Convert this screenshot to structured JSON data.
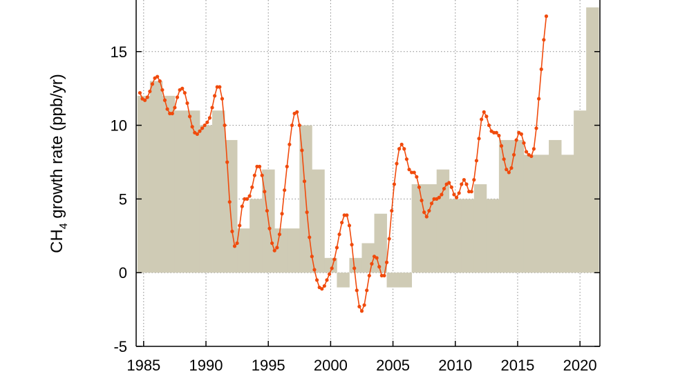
{
  "chart_data": {
    "type": "bar",
    "ylabel": {
      "prefix": "CH",
      "subscript": "4",
      "suffix": " growth rate (ppb/yr)"
    },
    "xlim": [
      1984.4,
      2021.6
    ],
    "ylim": [
      -5,
      18.5
    ],
    "x_ticks": [
      {
        "value": 1985,
        "label": "1985"
      },
      {
        "value": 1990,
        "label": "1990"
      },
      {
        "value": 1995,
        "label": "1995"
      },
      {
        "value": 2000,
        "label": "2000"
      },
      {
        "value": 2005,
        "label": "2005"
      },
      {
        "value": 2010,
        "label": "2010"
      },
      {
        "value": 2015,
        "label": "2015"
      },
      {
        "value": 2020,
        "label": "2020"
      }
    ],
    "y_ticks": [
      {
        "value": -5,
        "label": "-5"
      },
      {
        "value": 0,
        "label": "0"
      },
      {
        "value": 5,
        "label": "5"
      },
      {
        "value": 10,
        "label": "10"
      },
      {
        "value": 15,
        "label": "15"
      }
    ],
    "grid": true,
    "annual_bars": {
      "name": "",
      "color": "#cfcbb5",
      "years": [
        1984,
        1985,
        1986,
        1987,
        1988,
        1989,
        1990,
        1991,
        1992,
        1993,
        1994,
        1995,
        1996,
        1997,
        1998,
        1999,
        2000,
        2001,
        2002,
        2003,
        2004,
        2005,
        2006,
        2007,
        2008,
        2009,
        2010,
        2011,
        2012,
        2013,
        2014,
        2015,
        2016,
        2017,
        2018,
        2019,
        2020
      ],
      "values": [
        12,
        13,
        12,
        11,
        11,
        10,
        11,
        9,
        3,
        5,
        7,
        3,
        3,
        10,
        7,
        1,
        -1,
        1,
        2,
        4,
        -1,
        -1,
        6,
        6,
        7,
        5,
        5,
        6,
        5,
        9,
        9,
        8,
        8,
        9,
        8,
        11,
        18
      ]
    },
    "monthly_series": {
      "name": "",
      "color": "#f04a0c",
      "points": [
        [
          1984.7,
          12.2
        ],
        [
          1984.9,
          11.8
        ],
        [
          1985.1,
          11.7
        ],
        [
          1985.3,
          11.9
        ],
        [
          1985.5,
          12.3
        ],
        [
          1985.7,
          12.8
        ],
        [
          1985.9,
          13.2
        ],
        [
          1986.1,
          13.3
        ],
        [
          1986.3,
          13.0
        ],
        [
          1986.5,
          12.4
        ],
        [
          1986.7,
          11.7
        ],
        [
          1986.9,
          11.1
        ],
        [
          1987.1,
          10.8
        ],
        [
          1987.3,
          10.8
        ],
        [
          1987.5,
          11.2
        ],
        [
          1987.7,
          11.9
        ],
        [
          1987.9,
          12.4
        ],
        [
          1988.1,
          12.5
        ],
        [
          1988.3,
          12.2
        ],
        [
          1988.5,
          11.5
        ],
        [
          1988.7,
          10.6
        ],
        [
          1988.9,
          9.9
        ],
        [
          1989.1,
          9.5
        ],
        [
          1989.3,
          9.4
        ],
        [
          1989.5,
          9.6
        ],
        [
          1989.7,
          9.8
        ],
        [
          1989.9,
          10.0
        ],
        [
          1990.1,
          10.2
        ],
        [
          1990.3,
          10.5
        ],
        [
          1990.5,
          11.2
        ],
        [
          1990.7,
          12.0
        ],
        [
          1990.9,
          12.6
        ],
        [
          1991.1,
          12.6
        ],
        [
          1991.3,
          11.8
        ],
        [
          1991.5,
          10.0
        ],
        [
          1991.7,
          7.5
        ],
        [
          1991.9,
          4.8
        ],
        [
          1992.1,
          2.8
        ],
        [
          1992.3,
          1.8
        ],
        [
          1992.5,
          2.0
        ],
        [
          1992.7,
          3.2
        ],
        [
          1992.9,
          4.5
        ],
        [
          1993.1,
          5.0
        ],
        [
          1993.3,
          5.0
        ],
        [
          1993.5,
          5.2
        ],
        [
          1993.7,
          5.8
        ],
        [
          1993.9,
          6.6
        ],
        [
          1994.1,
          7.2
        ],
        [
          1994.3,
          7.2
        ],
        [
          1994.5,
          6.6
        ],
        [
          1994.7,
          5.5
        ],
        [
          1994.9,
          4.2
        ],
        [
          1995.1,
          3.0
        ],
        [
          1995.3,
          2.0
        ],
        [
          1995.5,
          1.5
        ],
        [
          1995.7,
          1.7
        ],
        [
          1995.9,
          2.6
        ],
        [
          1996.1,
          4.0
        ],
        [
          1996.3,
          5.6
        ],
        [
          1996.5,
          7.2
        ],
        [
          1996.7,
          8.7
        ],
        [
          1996.9,
          10.0
        ],
        [
          1997.1,
          10.8
        ],
        [
          1997.3,
          10.9
        ],
        [
          1997.5,
          10.0
        ],
        [
          1997.7,
          8.3
        ],
        [
          1997.9,
          6.2
        ],
        [
          1998.1,
          4.1
        ],
        [
          1998.3,
          2.4
        ],
        [
          1998.5,
          1.1
        ],
        [
          1998.7,
          0.2
        ],
        [
          1998.9,
          -0.5
        ],
        [
          1999.1,
          -1.0
        ],
        [
          1999.3,
          -1.1
        ],
        [
          1999.5,
          -0.9
        ],
        [
          1999.7,
          -0.5
        ],
        [
          1999.9,
          -0.1
        ],
        [
          2000.1,
          0.3
        ],
        [
          2000.3,
          0.9
        ],
        [
          2000.5,
          1.7
        ],
        [
          2000.7,
          2.6
        ],
        [
          2000.9,
          3.4
        ],
        [
          2001.1,
          3.9
        ],
        [
          2001.3,
          3.9
        ],
        [
          2001.5,
          3.2
        ],
        [
          2001.7,
          1.9
        ],
        [
          2001.9,
          0.3
        ],
        [
          2002.1,
          -1.2
        ],
        [
          2002.3,
          -2.3
        ],
        [
          2002.5,
          -2.6
        ],
        [
          2002.7,
          -2.2
        ],
        [
          2002.9,
          -1.2
        ],
        [
          2003.1,
          -0.2
        ],
        [
          2003.3,
          0.6
        ],
        [
          2003.5,
          1.1
        ],
        [
          2003.7,
          1.0
        ],
        [
          2003.9,
          0.4
        ],
        [
          2004.1,
          -0.2
        ],
        [
          2004.3,
          -0.2
        ],
        [
          2004.5,
          0.7
        ],
        [
          2004.7,
          2.3
        ],
        [
          2004.9,
          4.2
        ],
        [
          2005.1,
          6.0
        ],
        [
          2005.3,
          7.4
        ],
        [
          2005.5,
          8.4
        ],
        [
          2005.7,
          8.7
        ],
        [
          2005.9,
          8.4
        ],
        [
          2006.1,
          7.7
        ],
        [
          2006.3,
          7.0
        ],
        [
          2006.5,
          6.8
        ],
        [
          2006.7,
          6.8
        ],
        [
          2006.9,
          6.5
        ],
        [
          2007.1,
          5.8
        ],
        [
          2007.3,
          4.9
        ],
        [
          2007.5,
          4.1
        ],
        [
          2007.7,
          3.8
        ],
        [
          2007.9,
          4.2
        ],
        [
          2008.1,
          4.7
        ],
        [
          2008.3,
          5.0
        ],
        [
          2008.5,
          5.0
        ],
        [
          2008.7,
          5.1
        ],
        [
          2008.9,
          5.3
        ],
        [
          2009.1,
          5.7
        ],
        [
          2009.3,
          6.0
        ],
        [
          2009.5,
          6.1
        ],
        [
          2009.7,
          5.8
        ],
        [
          2009.9,
          5.3
        ],
        [
          2010.1,
          5.1
        ],
        [
          2010.3,
          5.4
        ],
        [
          2010.5,
          6.0
        ],
        [
          2010.7,
          6.3
        ],
        [
          2010.9,
          6.0
        ],
        [
          2011.1,
          5.5
        ],
        [
          2011.3,
          5.5
        ],
        [
          2011.5,
          6.3
        ],
        [
          2011.7,
          7.6
        ],
        [
          2011.9,
          9.1
        ],
        [
          2012.1,
          10.4
        ],
        [
          2012.3,
          10.9
        ],
        [
          2012.5,
          10.6
        ],
        [
          2012.7,
          10.0
        ],
        [
          2012.9,
          9.6
        ],
        [
          2013.1,
          9.5
        ],
        [
          2013.3,
          9.5
        ],
        [
          2013.5,
          9.3
        ],
        [
          2013.7,
          8.6
        ],
        [
          2013.9,
          7.7
        ],
        [
          2014.1,
          7.0
        ],
        [
          2014.3,
          6.8
        ],
        [
          2014.5,
          7.1
        ],
        [
          2014.7,
          8.0
        ],
        [
          2014.9,
          9.0
        ],
        [
          2015.1,
          9.5
        ],
        [
          2015.3,
          9.4
        ],
        [
          2015.5,
          8.8
        ],
        [
          2015.7,
          8.2
        ],
        [
          2015.9,
          8.0
        ],
        [
          2016.1,
          7.9
        ],
        [
          2016.3,
          8.4
        ],
        [
          2016.5,
          9.8
        ],
        [
          2016.7,
          11.8
        ],
        [
          2016.9,
          13.8
        ],
        [
          2017.1,
          15.8
        ],
        [
          2017.3,
          17.4
        ]
      ]
    }
  }
}
